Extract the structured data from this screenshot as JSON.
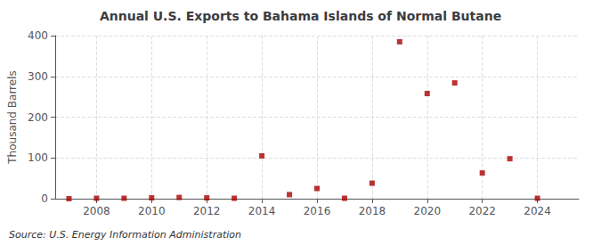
{
  "chart_data": {
    "type": "scatter",
    "title": "Annual U.S. Exports to Bahama Islands of Normal Butane",
    "ylabel": "Thousand Barrels",
    "annotations": [
      "Source: U.S. Energy Information Administration"
    ],
    "x": [
      2007,
      2008,
      2009,
      2010,
      2011,
      2012,
      2013,
      2014,
      2015,
      2016,
      2017,
      2018,
      2019,
      2020,
      2021,
      2022,
      2023,
      2024
    ],
    "values": [
      0,
      1,
      1,
      2,
      3,
      2,
      1,
      105,
      10,
      25,
      1,
      38,
      385,
      258,
      284,
      63,
      98,
      1
    ],
    "color": "#aa0000",
    "marker": "square",
    "xlim": [
      2006.5,
      2025.5
    ],
    "xticks": [
      2008,
      2010,
      2012,
      2014,
      2016,
      2018,
      2020,
      2022,
      2024
    ],
    "ylim": [
      0,
      400
    ],
    "yticks": [
      0,
      100,
      200,
      300,
      400
    ],
    "grid": true
  }
}
